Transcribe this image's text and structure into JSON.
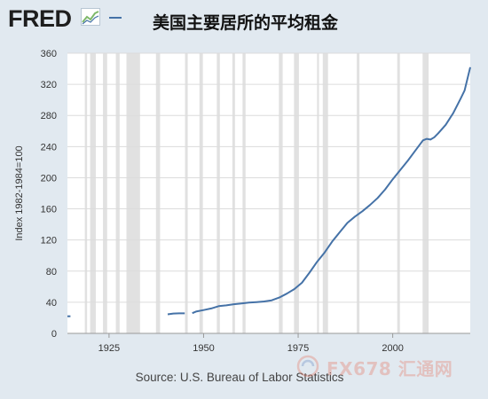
{
  "header": {
    "logo_text": "FRED",
    "logo_icon": "line-chart-icon",
    "title": "美国主要居所的平均租金"
  },
  "source": "Source: U.S. Bureau of Labor Statistics",
  "watermark": {
    "text": "FX678 汇通网",
    "icon": "swirl-logo-icon"
  },
  "colors": {
    "background": "#e1e9f0",
    "plot_background": "#ffffff",
    "line": "#4572a7",
    "recession": "#e1e1e1",
    "gridline": "#dcdcdc",
    "axis_text": "#333333"
  },
  "chart_data": {
    "type": "line",
    "title": "美国主要居所的平均租金",
    "ylabel": "Index 1982-1984=100",
    "xlabel": "",
    "xlim": [
      1914.0,
      2020.5
    ],
    "ylim": [
      0,
      360
    ],
    "yticks": [
      0,
      40,
      80,
      120,
      160,
      200,
      240,
      280,
      320,
      360
    ],
    "xticks": [
      1925,
      1950,
      1975,
      2000
    ],
    "grid": "horizontal",
    "legend": "none",
    "recession_bands": [
      [
        1918.6,
        1919.2
      ],
      [
        1920.0,
        1921.5
      ],
      [
        1923.4,
        1924.5
      ],
      [
        1926.8,
        1927.8
      ],
      [
        1929.6,
        1933.2
      ],
      [
        1937.4,
        1938.5
      ],
      [
        1945.1,
        1945.8
      ],
      [
        1948.9,
        1949.8
      ],
      [
        1953.5,
        1954.3
      ],
      [
        1957.6,
        1958.3
      ],
      [
        1960.3,
        1961.1
      ],
      [
        1969.9,
        1970.9
      ],
      [
        1973.9,
        1975.2
      ],
      [
        1980.0,
        1980.5
      ],
      [
        1981.5,
        1982.9
      ],
      [
        1990.5,
        1991.2
      ],
      [
        2001.2,
        2001.9
      ],
      [
        2007.9,
        2009.5
      ]
    ],
    "series": [
      {
        "segments": [
          {
            "x": [
              1914.0,
              1914.8
            ],
            "y": [
              22,
              22
            ]
          },
          {
            "x": [
              1940.5,
              1942,
              1943.5,
              1945
            ],
            "y": [
              24.5,
              25.5,
              25.7,
              25.8
            ]
          },
          {
            "x": [
              1947,
              1948,
              1950,
              1952,
              1954,
              1956,
              1958,
              1960,
              1962,
              1964,
              1966,
              1968,
              1970,
              1972,
              1974,
              1976,
              1978,
              1980,
              1982,
              1984,
              1986,
              1988,
              1990,
              1992,
              1994,
              1996,
              1998,
              2000,
              2002,
              2004,
              2006,
              2008,
              2009,
              2010,
              2011,
              2012,
              2014,
              2016,
              2018,
              2019,
              2020.5
            ],
            "y": [
              26,
              28,
              30,
              32,
              35,
              36,
              37.5,
              38.5,
              39.5,
              40.2,
              41,
              42.5,
              46,
              51,
              57,
              65,
              78,
              92,
              104,
              118,
              130,
              142,
              150,
              157,
              165,
              174,
              185,
              198,
              210,
              222,
              235,
              248,
              250,
              249,
              252,
              257,
              268,
              283,
              302,
              312,
              342
            ]
          }
        ]
      }
    ]
  }
}
